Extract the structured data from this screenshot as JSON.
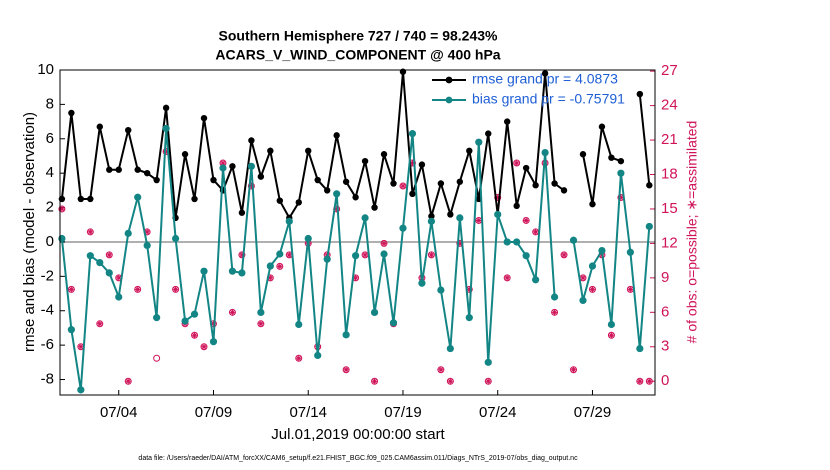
{
  "chart_data": {
    "type": "line",
    "title": "Southern Hemisphere 727 / 740 = 98.243%",
    "subtitle": "ACARS_V_WIND_COMPONENT @ 400 hPa",
    "xlabel": "Jul.01,2019 00:00:00 start",
    "ylabel": "rmse and bias (model - observation)",
    "y2label": "# of obs: o=possible; ∗=assimilated",
    "footnote": "data file: /Users/raeder/DAI/ATM_forcXX/CAM6_setup/f.e21.FHIST_BGC.f09_025.CAM6assim.011/Diags_NTrS_2019-07/obs_diag_output.nc",
    "xlim": [
      -0.1,
      31.3
    ],
    "xticks": [
      {
        "value": 3,
        "label": "07/04"
      },
      {
        "value": 8,
        "label": "07/09"
      },
      {
        "value": 13,
        "label": "07/14"
      },
      {
        "value": 18,
        "label": "07/19"
      },
      {
        "value": 23,
        "label": "07/24"
      },
      {
        "value": 28,
        "label": "07/29"
      }
    ],
    "ylim": [
      -8.9,
      10
    ],
    "yticks": [
      -8,
      -6,
      -4,
      -2,
      0,
      2,
      4,
      6,
      8,
      10
    ],
    "y2lim": [
      -1.2,
      27.1
    ],
    "y2ticks": [
      0,
      3,
      6,
      9,
      12,
      15,
      18,
      21,
      24,
      27
    ],
    "zero_line_color": "#b0b0b0",
    "legend": "upper right",
    "x": [
      0,
      0.5,
      1,
      1.5,
      2,
      2.5,
      3,
      3.5,
      4,
      4.5,
      5,
      5.5,
      6,
      6.5,
      7,
      7.5,
      8,
      8.5,
      9,
      9.5,
      10,
      10.5,
      11,
      11.5,
      12,
      12.5,
      13,
      13.5,
      14,
      14.5,
      15,
      15.5,
      16,
      16.5,
      17,
      17.5,
      18,
      18.5,
      19,
      19.5,
      20,
      20.5,
      21,
      21.5,
      22,
      22.5,
      23,
      23.5,
      24,
      24.5,
      25,
      25.5,
      26,
      26.5,
      27,
      27.5,
      28,
      28.5,
      29,
      29.5,
      30,
      30.5,
      31
    ],
    "series": [
      {
        "name": "rmse grand pr = 4.0873",
        "color": "#000000",
        "values": [
          2.5,
          7.5,
          2.5,
          2.5,
          6.7,
          4.2,
          4.2,
          6.5,
          4.2,
          4,
          3.6,
          7.8,
          1.4,
          5.1,
          2.5,
          7.2,
          3.6,
          3,
          4.4,
          1.7,
          5.9,
          3.8,
          5.3,
          2.4,
          1.4,
          2.3,
          5.3,
          3.6,
          3,
          6.2,
          3.5,
          2.6,
          4.7,
          2,
          5.1,
          3.4,
          9.9,
          2.8,
          4.5,
          1.5,
          3.4,
          1.6,
          3.5,
          5.3,
          2.5,
          6.3,
          1.6,
          7,
          2.1,
          4.3,
          3.3,
          9.8,
          3.4,
          3,
          null,
          5.1,
          2.2,
          6.7,
          4.9,
          4.7,
          null,
          8.6,
          3.3
        ]
      },
      {
        "name": "bias grand pr = -0.75791",
        "color": "#138585",
        "values": [
          0.2,
          -5.1,
          -8.6,
          -0.8,
          -1.2,
          -1.8,
          -3.2,
          0.5,
          2.6,
          -0.2,
          -4.4,
          6.6,
          0.2,
          -4.6,
          -4.2,
          -1.7,
          -5.8,
          4.3,
          -1.7,
          -1.8,
          4.4,
          -4.1,
          -1.4,
          -0.7,
          1.2,
          -4.8,
          0.2,
          -6.6,
          -1,
          2.8,
          -5.4,
          -0.8,
          1.4,
          -4.1,
          -0.7,
          -4.7,
          0.8,
          6.3,
          -2.4,
          1.2,
          -2.8,
          -6.2,
          1.4,
          -4.4,
          5.8,
          -7,
          1.6,
          0,
          0,
          -0.8,
          -2.2,
          5.2,
          -3.2,
          null,
          0.1,
          -3.4,
          -1.4,
          -0.5,
          -4.8,
          4,
          -0.6,
          -6.2,
          0.9
        ]
      }
    ],
    "obs": [
      {
        "marker": "o",
        "color": "#d0145a",
        "axis": "y2",
        "values": [
          15,
          8,
          3,
          13,
          5,
          11,
          9,
          0,
          8,
          13,
          2,
          20,
          8,
          5,
          4,
          3,
          5,
          19,
          6,
          11,
          17,
          5,
          9,
          10,
          11,
          2,
          12,
          3,
          11,
          15,
          1,
          9,
          11,
          0,
          12,
          5,
          17,
          19,
          9,
          11,
          1,
          0,
          12,
          8,
          14,
          0,
          16,
          9,
          19,
          14,
          13,
          19,
          6,
          11,
          1,
          9,
          8,
          11,
          4,
          16,
          8,
          0,
          0
        ]
      },
      {
        "marker": "*",
        "color": "#d0145a",
        "axis": "y2",
        "values": [
          15,
          8,
          3,
          13,
          5,
          11,
          9,
          0,
          8,
          13,
          null,
          20,
          8,
          5,
          4,
          3,
          5,
          19,
          6,
          11,
          17,
          5,
          9,
          10,
          11,
          2,
          12,
          3,
          11,
          15,
          1,
          9,
          11,
          0,
          12,
          5,
          17,
          19,
          9,
          11,
          1,
          0,
          12,
          8,
          14,
          0,
          16,
          9,
          19,
          14,
          13,
          19,
          6,
          11,
          1,
          9,
          8,
          11,
          4,
          16,
          8,
          0,
          0
        ]
      }
    ]
  }
}
